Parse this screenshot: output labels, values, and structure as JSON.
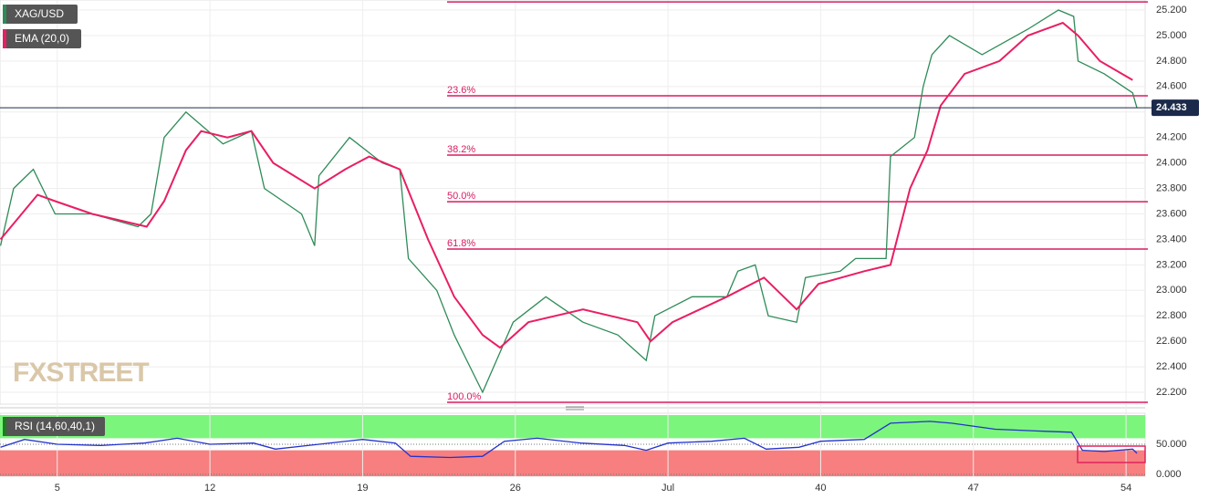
{
  "chart_data": [
    {
      "type": "line",
      "watermark": "FXSTREET",
      "xlim": [
        2.375,
        54.875
      ],
      "ylim": [
        22.107,
        25.279
      ],
      "grid": true,
      "yticks": [
        {
          "value": 22.2,
          "label": "22.200"
        },
        {
          "value": 22.4,
          "label": "22.400"
        },
        {
          "value": 22.6,
          "label": "22.600"
        },
        {
          "value": 22.8,
          "label": "22.800"
        },
        {
          "value": 23.0,
          "label": "23.000"
        },
        {
          "value": 23.2,
          "label": "23.200"
        },
        {
          "value": 23.4,
          "label": "23.400"
        },
        {
          "value": 23.6,
          "label": "23.600"
        },
        {
          "value": 23.8,
          "label": "23.800"
        },
        {
          "value": 24.0,
          "label": "24.000"
        },
        {
          "value": 24.2,
          "label": "24.200"
        },
        {
          "value": 24.4,
          "label": "24.400"
        },
        {
          "value": 24.6,
          "label": "24.600"
        },
        {
          "value": 24.8,
          "label": "24.800"
        },
        {
          "value": 25.0,
          "label": "25.000"
        },
        {
          "value": 25.2,
          "label": "25.200"
        }
      ],
      "last_price": 24.433,
      "fib_levels": [
        {
          "value": 25.264
        },
        {
          "value": 24.527,
          "label": "23.6%"
        },
        {
          "value": 24.062,
          "label": "38.2%"
        },
        {
          "value": 23.696,
          "label": "50.0%"
        },
        {
          "value": 23.324,
          "label": "61.8%"
        },
        {
          "value": 22.121,
          "label": "100.0%"
        }
      ],
      "fib_color": "#d81b60",
      "series": [
        {
          "name": "XAG/USD",
          "color": "#2e8b57",
          "x": [
            2.4,
            3.0,
            3.9,
            4.9,
            6.6,
            8.7,
            9.3,
            9.9,
            10.9,
            12.6,
            13.9,
            14.5,
            16.2,
            16.8,
            17.0,
            18.4,
            19.9,
            20.7,
            21.1,
            22.4,
            23.2,
            24.5,
            25.9,
            27.4,
            29.1,
            30.7,
            32.0,
            32.4,
            34.1,
            35.7,
            36.2,
            37.0,
            37.6,
            38.9,
            39.3,
            40.9,
            41.6,
            43.0,
            43.2,
            44.3,
            44.7,
            45.1,
            45.9,
            47.4,
            49.5,
            50.9,
            51.6,
            51.8,
            53.0,
            54.3,
            54.5
          ],
          "values": [
            23.35,
            23.8,
            23.95,
            23.6,
            23.6,
            23.5,
            23.6,
            24.2,
            24.4,
            24.15,
            24.25,
            23.8,
            23.6,
            23.35,
            23.9,
            24.2,
            24.0,
            23.95,
            23.25,
            23.0,
            22.65,
            22.2,
            22.75,
            22.95,
            22.75,
            22.65,
            22.45,
            22.8,
            22.95,
            22.95,
            23.15,
            23.2,
            22.8,
            22.75,
            23.1,
            23.15,
            23.25,
            23.25,
            24.05,
            24.2,
            24.6,
            24.85,
            25.0,
            24.85,
            25.05,
            25.2,
            25.15,
            24.8,
            24.7,
            24.55,
            24.433
          ]
        },
        {
          "name": "EMA (20,0)",
          "color": "#e91e63",
          "x": [
            2.4,
            4.1,
            4.9,
            6.6,
            9.1,
            9.9,
            10.9,
            11.6,
            12.8,
            13.9,
            14.9,
            16.8,
            18.2,
            19.3,
            20.7,
            22.0,
            23.2,
            24.5,
            25.3,
            26.6,
            29.1,
            31.6,
            32.2,
            33.2,
            35.7,
            37.4,
            38.9,
            39.9,
            42.0,
            43.2,
            44.1,
            44.9,
            45.5,
            46.6,
            48.2,
            49.5,
            51.1,
            51.8,
            52.8,
            54.3
          ],
          "values": [
            23.4,
            23.75,
            23.7,
            23.6,
            23.5,
            23.7,
            24.1,
            24.25,
            24.2,
            24.25,
            24.0,
            23.8,
            23.95,
            24.05,
            23.95,
            23.4,
            22.95,
            22.65,
            22.55,
            22.75,
            22.85,
            22.75,
            22.6,
            22.75,
            22.95,
            23.1,
            22.85,
            23.05,
            23.15,
            23.2,
            23.8,
            24.1,
            24.45,
            24.7,
            24.8,
            25.0,
            25.1,
            25.0,
            24.8,
            24.65
          ]
        }
      ]
    },
    {
      "type": "line",
      "title": "RSI (14,60,40,1)",
      "xlim": [
        2.375,
        54.875
      ],
      "ylim": [
        -3,
        101.5
      ],
      "upper": 60,
      "lower": 40,
      "yticks": [
        {
          "value": 0,
          "label": "0.000"
        },
        {
          "value": 50,
          "label": "50.000"
        }
      ],
      "xticks": [
        5,
        12,
        19,
        26,
        {
          "value": 33,
          "label": "Jul"
        },
        40,
        47,
        54
      ],
      "series": [
        {
          "name": "RSI",
          "color": "#2233cc",
          "x": [
            2.4,
            3.5,
            5,
            7,
            9,
            10.5,
            12,
            14,
            15,
            17,
            19,
            20.5,
            21.2,
            23,
            24.5,
            25.5,
            27,
            29,
            31,
            32,
            33,
            35,
            36.5,
            37.5,
            39,
            40,
            42,
            43.2,
            45,
            46,
            48,
            50,
            51.5,
            52,
            53,
            54.3,
            54.5
          ],
          "values": [
            45,
            58,
            50,
            48,
            52,
            60,
            50,
            52,
            42,
            50,
            58,
            52,
            30,
            28,
            30,
            55,
            60,
            52,
            48,
            40,
            52,
            55,
            60,
            42,
            45,
            55,
            58,
            85,
            88,
            85,
            75,
            72,
            70,
            40,
            38,
            42,
            35
          ]
        }
      ]
    }
  ]
}
